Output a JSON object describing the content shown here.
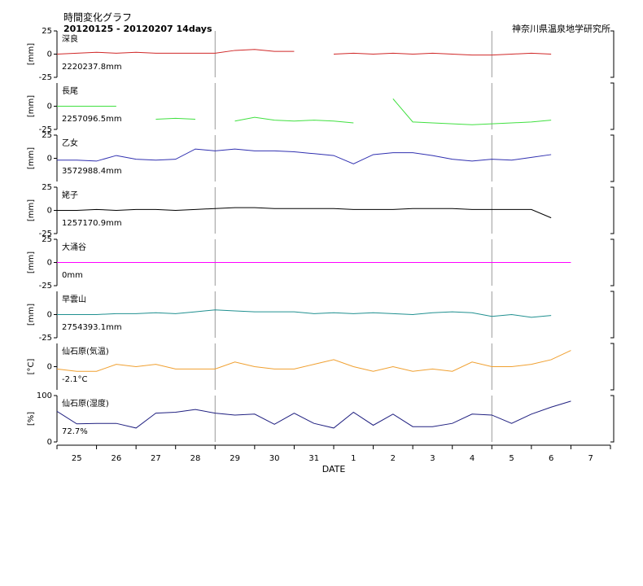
{
  "header": {
    "title": "時間変化グラフ",
    "subtitle": "20120125 - 20120207 14days",
    "org": "神奈川県温泉地学研究所"
  },
  "x_axis": {
    "label": "DATE",
    "categories": [
      null,
      "25",
      null,
      "26",
      null,
      "27",
      null,
      "28",
      null,
      "29",
      null,
      "30",
      null,
      "31",
      null,
      "1",
      null,
      "2",
      null,
      "3",
      null,
      "4",
      null,
      "5",
      null,
      "6",
      null,
      "7"
    ]
  },
  "chart_data": [
    {
      "type": "line",
      "title": "深良",
      "ylabel": "[mm]",
      "annotation": "2220237.8mm",
      "color": "#d02828",
      "ylim": [
        -25,
        25
      ],
      "yticks": [
        25,
        0,
        -25
      ],
      "values": [
        0,
        1,
        2,
        1,
        2,
        1,
        1,
        1,
        1,
        4,
        5,
        3,
        3,
        null,
        0,
        1,
        0,
        1,
        0,
        1,
        0,
        -1,
        -1,
        0,
        1,
        0,
        null,
        null
      ]
    },
    {
      "type": "line",
      "title": "長尾",
      "ylabel": "[mm]",
      "annotation": "2257096.5mm",
      "color": "#40e040",
      "ylim": [
        -25,
        25
      ],
      "yticks": [
        0,
        -25
      ],
      "values": [
        0,
        0,
        0,
        0,
        null,
        -14,
        -13,
        -14,
        null,
        -16,
        -12,
        -15,
        -16,
        -15,
        -16,
        -18,
        null,
        8,
        -17,
        -18,
        -19,
        -20,
        -19,
        -18,
        -17,
        -15,
        null,
        null
      ]
    },
    {
      "type": "line",
      "title": "乙女",
      "ylabel": "[mm]",
      "annotation": "3572988.4mm",
      "color": "#3030b0",
      "ylim": [
        -25,
        25
      ],
      "yticks": [
        25,
        0
      ],
      "values": [
        -2,
        -2,
        -3,
        3,
        -1,
        -2,
        -1,
        10,
        8,
        10,
        8,
        8,
        7,
        5,
        3,
        -6,
        4,
        6,
        6,
        3,
        -1,
        -3,
        -1,
        -2,
        1,
        4,
        null,
        null
      ]
    },
    {
      "type": "line",
      "title": "姥子",
      "ylabel": "[mm]",
      "annotation": "1257170.9mm",
      "color": "#000000",
      "ylim": [
        -25,
        25
      ],
      "yticks": [
        25,
        0,
        -25
      ],
      "values": [
        0,
        0,
        1,
        0,
        1,
        1,
        0,
        1,
        2,
        3,
        3,
        2,
        2,
        2,
        2,
        1,
        1,
        1,
        2,
        2,
        2,
        1,
        1,
        1,
        1,
        -8,
        null,
        null
      ]
    },
    {
      "type": "line",
      "title": "大涌谷",
      "ylabel": "[mm]",
      "annotation": "0mm",
      "color": "#ff00ff",
      "ylim": [
        -25,
        25
      ],
      "yticks": [
        25,
        0,
        -25
      ],
      "values": [
        0,
        0,
        0,
        0,
        0,
        0,
        0,
        0,
        0,
        0,
        0,
        0,
        0,
        0,
        0,
        0,
        0,
        0,
        0,
        0,
        0,
        0,
        0,
        0,
        0,
        0,
        0,
        null
      ]
    },
    {
      "type": "line",
      "title": "早雲山",
      "ylabel": "[mm]",
      "annotation": "2754393.1mm",
      "color": "#209090",
      "ylim": [
        -25,
        25
      ],
      "yticks": [
        0,
        -25
      ],
      "values": [
        0,
        0,
        0,
        1,
        1,
        2,
        1,
        3,
        5,
        4,
        3,
        3,
        3,
        1,
        2,
        1,
        2,
        1,
        0,
        2,
        3,
        2,
        -2,
        0,
        -3,
        -1,
        null,
        null
      ]
    },
    {
      "type": "line",
      "title": "仙石原(気温)",
      "ylabel": "[°C]",
      "annotation": "-2.1°C",
      "color": "#f0a030",
      "ylim": [
        -10,
        10
      ],
      "yticks": [
        0
      ],
      "values": [
        -1,
        -2,
        -2,
        1,
        0,
        1,
        -1,
        -1,
        -1,
        2,
        0,
        -1,
        -1,
        1,
        3,
        0,
        -2,
        0,
        -2,
        -1,
        -2,
        2,
        0,
        0,
        1,
        3,
        7,
        null
      ]
    },
    {
      "type": "line",
      "title": "仙石原(湿度)",
      "ylabel": "[%]",
      "annotation": "72.7%",
      "color": "#202080",
      "ylim": [
        0,
        100
      ],
      "yticks": [
        100,
        0
      ],
      "values": [
        66,
        39,
        40,
        40,
        30,
        62,
        64,
        70,
        62,
        58,
        60,
        38,
        62,
        40,
        30,
        64,
        36,
        60,
        33,
        33,
        40,
        60,
        58,
        40,
        60,
        75,
        88,
        null
      ]
    }
  ]
}
